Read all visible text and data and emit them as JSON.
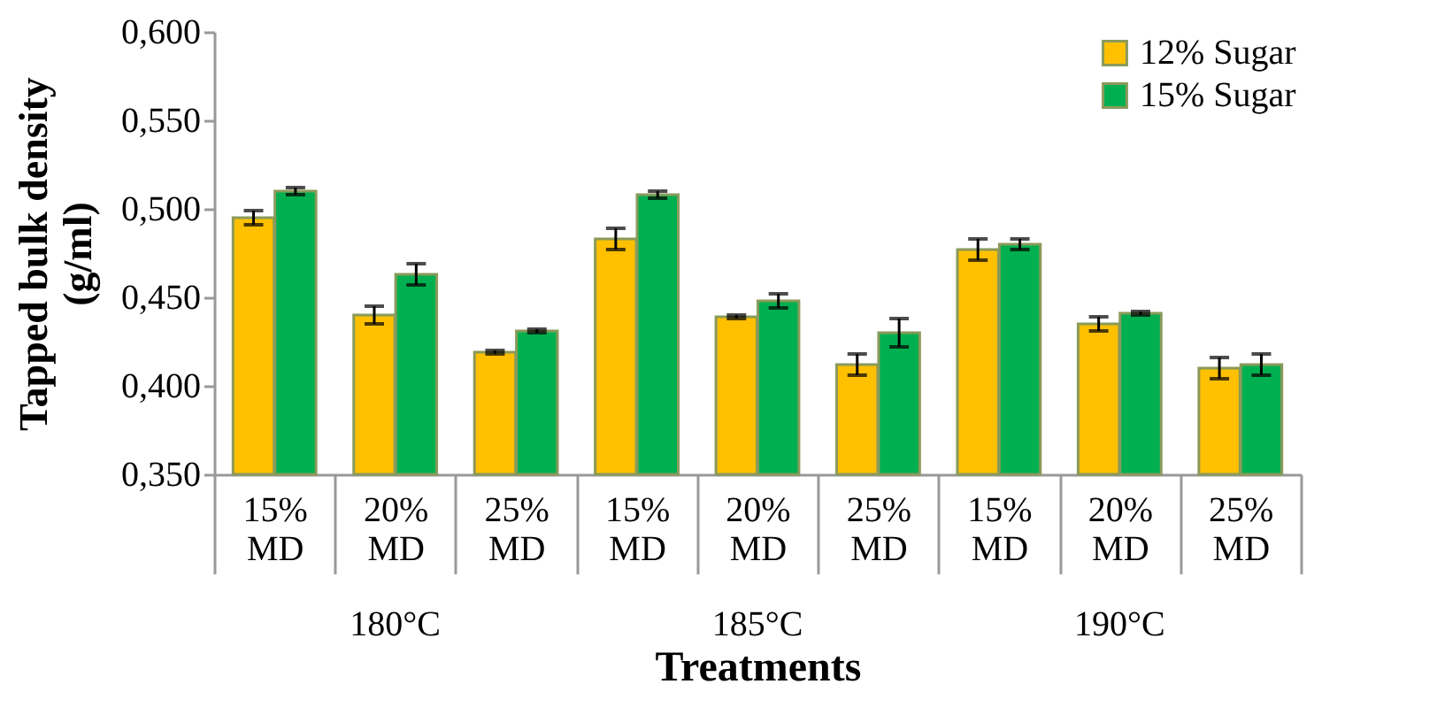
{
  "chart_data": {
    "type": "bar",
    "xlabel": "Treatments",
    "ylabel": "Tapped bulk density (g/ml)",
    "categories": [
      "15% MD",
      "20% MD",
      "25% MD",
      "15% MD",
      "20% MD",
      "25% MD",
      "15% MD",
      "20% MD",
      "25% MD"
    ],
    "annotations": [
      "180°C",
      "185°C",
      "190°C"
    ],
    "series": [
      {
        "name": "12% Sugar",
        "color": "#ffc000",
        "values": [
          0.495,
          0.44,
          0.419,
          0.483,
          0.439,
          0.412,
          0.477,
          0.435,
          0.41
        ],
        "errors": [
          0.004,
          0.005,
          0.001,
          0.006,
          0.001,
          0.006,
          0.006,
          0.004,
          0.006
        ]
      },
      {
        "name": "15% Sugar",
        "color": "#00b050",
        "values": [
          0.51,
          0.463,
          0.431,
          0.508,
          0.448,
          0.43,
          0.48,
          0.441,
          0.412
        ],
        "errors": [
          0.002,
          0.006,
          0.001,
          0.002,
          0.004,
          0.008,
          0.003,
          0.001,
          0.006
        ]
      }
    ],
    "ylim": [
      0.35,
      0.6
    ],
    "yticks": [
      {
        "value": 0.35,
        "label": "0,350"
      },
      {
        "value": 0.4,
        "label": "0,400"
      },
      {
        "value": 0.45,
        "label": "0,450"
      },
      {
        "value": 0.5,
        "label": "0,500"
      },
      {
        "value": 0.55,
        "label": "0,550"
      },
      {
        "value": 0.6,
        "label": "0,600"
      }
    ],
    "grid": false,
    "legend": "top right"
  }
}
